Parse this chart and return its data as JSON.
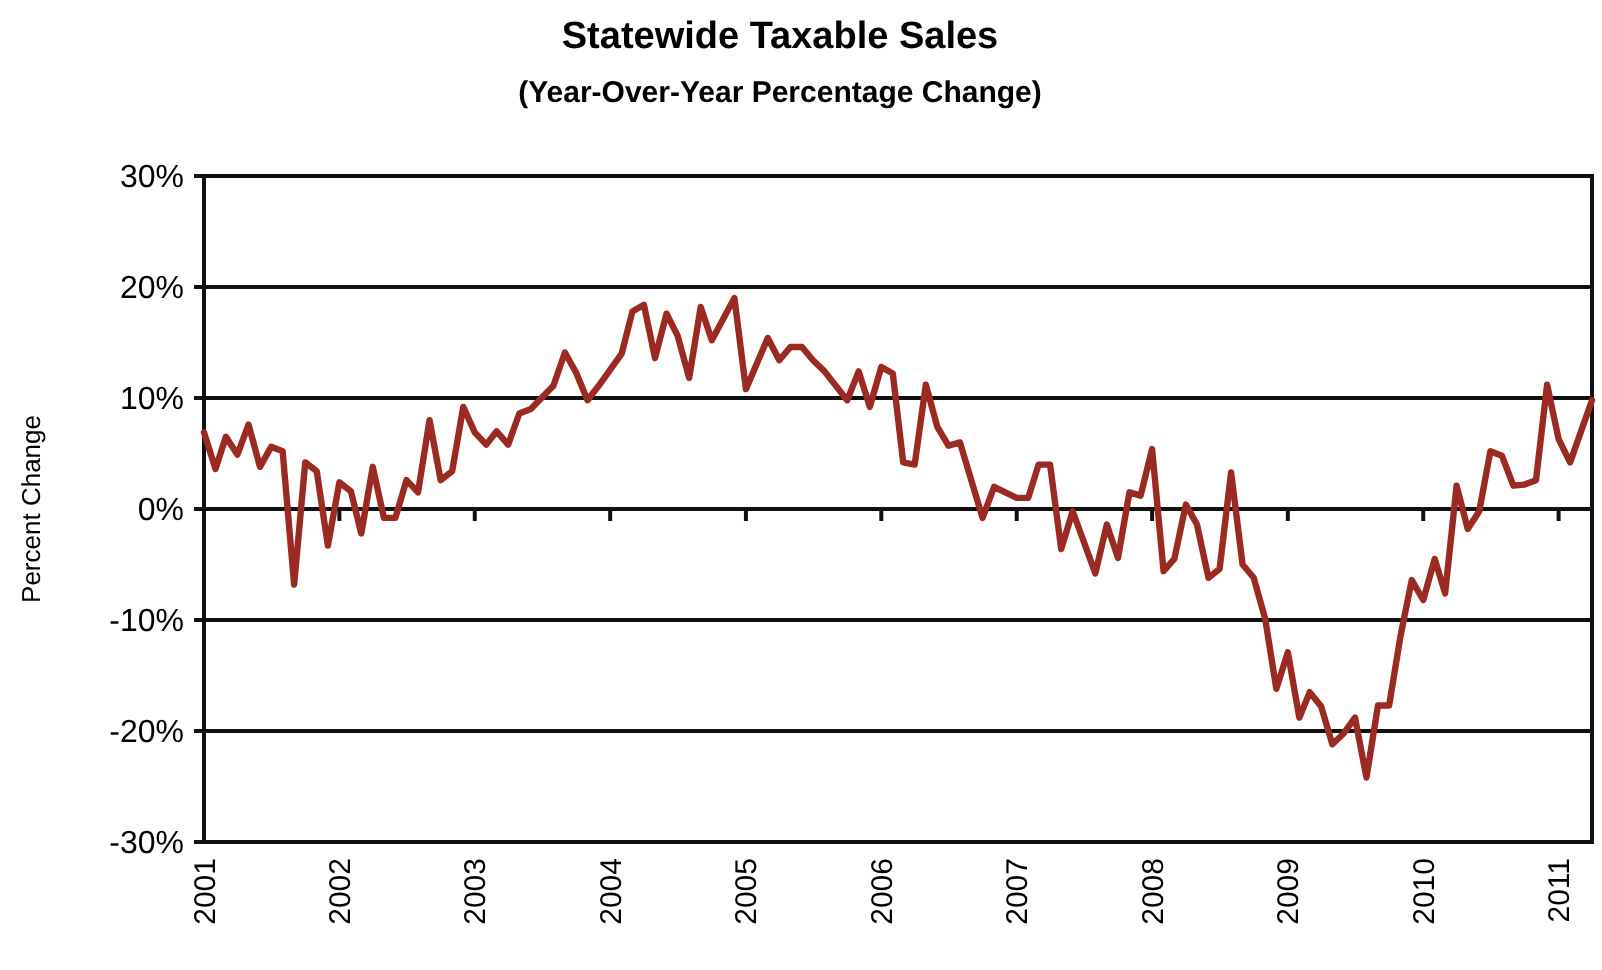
{
  "chart_data": {
    "type": "line",
    "title": "Statewide Taxable Sales",
    "subtitle": "(Year-Over-Year Percentage Change)",
    "ylabel": "Percent Change",
    "x": [
      "2001-01",
      "2001-02",
      "2001-03",
      "2001-04",
      "2001-05",
      "2001-06",
      "2001-07",
      "2001-08",
      "2001-09",
      "2001-10",
      "2001-11",
      "2001-12",
      "2002-01",
      "2002-02",
      "2002-03",
      "2002-04",
      "2002-05",
      "2002-06",
      "2002-07",
      "2002-08",
      "2002-09",
      "2002-10",
      "2002-11",
      "2002-12",
      "2003-01",
      "2003-02",
      "2003-03",
      "2003-04",
      "2003-05",
      "2003-06",
      "2003-08",
      "2003-09",
      "2003-10",
      "2003-11",
      "2003-12",
      "2004-02",
      "2004-03",
      "2004-04",
      "2004-05",
      "2004-06",
      "2004-07",
      "2004-08",
      "2004-09",
      "2004-10",
      "2004-12",
      "2005-01",
      "2005-03",
      "2005-04",
      "2005-05",
      "2005-06",
      "2005-07",
      "2005-08",
      "2005-10",
      "2005-11",
      "2005-12",
      "2006-01",
      "2006-02",
      "2006-03",
      "2006-04",
      "2006-05",
      "2006-06",
      "2006-07",
      "2006-08",
      "2006-10",
      "2006-11",
      "2007-01",
      "2007-02",
      "2007-03",
      "2007-04",
      "2007-05",
      "2007-06",
      "2007-08",
      "2007-09",
      "2007-10",
      "2007-11",
      "2007-12",
      "2008-01",
      "2008-02",
      "2008-03",
      "2008-04",
      "2008-05",
      "2008-06",
      "2008-07",
      "2008-08",
      "2008-09",
      "2008-10",
      "2008-11",
      "2008-12",
      "2009-01",
      "2009-02",
      "2009-03",
      "2009-04",
      "2009-05",
      "2009-06",
      "2009-07",
      "2009-08",
      "2009-09",
      "2009-10",
      "2009-11",
      "2009-12",
      "2010-01",
      "2010-02",
      "2010-03",
      "2010-04",
      "2010-05",
      "2010-06",
      "2010-07",
      "2010-08",
      "2010-09",
      "2010-10",
      "2010-11",
      "2010-12",
      "2011-01",
      "2011-02",
      "2011-04"
    ],
    "series": [
      {
        "color": "#9b2a23",
        "values": [
          6.9,
          3.6,
          6.5,
          4.9,
          7.6,
          3.8,
          5.6,
          5.2,
          -6.8,
          4.2,
          3.4,
          -3.3,
          2.4,
          1.6,
          -2.2,
          3.8,
          -0.8,
          -0.8,
          2.6,
          1.5,
          8.0,
          2.6,
          3.4,
          9.2,
          6.9,
          5.8,
          7.0,
          5.8,
          8.6,
          9.0,
          11.1,
          14.1,
          12.3,
          9.8,
          11.1,
          14.0,
          17.8,
          18.4,
          13.6,
          17.6,
          15.6,
          11.8,
          18.2,
          15.2,
          19.0,
          10.8,
          15.4,
          13.4,
          14.6,
          14.6,
          13.4,
          12.4,
          9.8,
          12.4,
          9.2,
          12.8,
          12.2,
          4.2,
          4.0,
          11.2,
          7.4,
          5.7,
          6.0,
          -0.8,
          2.0,
          1.0,
          1.0,
          4.0,
          4.0,
          -3.6,
          -0.2,
          -5.8,
          -1.4,
          -4.4,
          1.5,
          1.2,
          5.4,
          -5.6,
          -4.5,
          0.4,
          -1.4,
          -6.2,
          -5.4,
          3.3,
          -5.0,
          -6.2,
          -9.9,
          -16.2,
          -12.9,
          -18.8,
          -16.5,
          -17.8,
          -21.2,
          -20.2,
          -18.8,
          -24.2,
          -17.7,
          -17.7,
          -11.4,
          -6.4,
          -8.2,
          -4.5,
          -7.6,
          2.1,
          -1.8,
          -0.2,
          5.2,
          4.8,
          2.1,
          2.2,
          2.6,
          11.2,
          6.3,
          4.2,
          9.8
        ]
      }
    ],
    "xlim": [
      "2001-01",
      "2011-04"
    ],
    "xticks": [
      {
        "value": "2001-01",
        "label": "2001"
      },
      {
        "value": "2002-01",
        "label": "2002"
      },
      {
        "value": "2003-01",
        "label": "2003"
      },
      {
        "value": "2004-01",
        "label": "2004"
      },
      {
        "value": "2005-01",
        "label": "2005"
      },
      {
        "value": "2006-01",
        "label": "2006"
      },
      {
        "value": "2007-01",
        "label": "2007"
      },
      {
        "value": "2008-01",
        "label": "2008"
      },
      {
        "value": "2009-01",
        "label": "2009"
      },
      {
        "value": "2010-01",
        "label": "2010"
      },
      {
        "value": "2011-01",
        "label": "2011"
      }
    ],
    "ylim": [
      -30,
      30
    ],
    "yticks": [
      {
        "value": -30,
        "label": "-30%"
      },
      {
        "value": -20,
        "label": "-20%"
      },
      {
        "value": -10,
        "label": "-10%"
      },
      {
        "value": 0,
        "label": "0%"
      },
      {
        "value": 10,
        "label": "10%"
      },
      {
        "value": 20,
        "label": "20%"
      },
      {
        "value": 30,
        "label": "30%"
      }
    ],
    "grid": "y",
    "marker": "none",
    "line_style": "solid"
  }
}
